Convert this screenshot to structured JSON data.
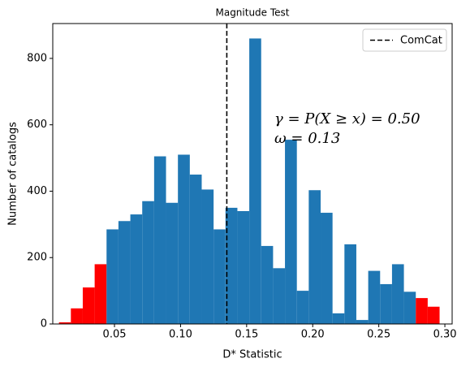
{
  "chart_data": {
    "type": "histogram",
    "title": "Magnitude Test",
    "x_label": "D* Statistic",
    "y_label": "Number of catalogs",
    "bins": [
      0.008,
      0.017,
      0.026,
      0.035,
      0.044,
      0.053,
      0.062,
      0.071,
      0.08,
      0.089,
      0.098,
      0.107,
      0.116,
      0.125,
      0.134,
      0.143,
      0.152,
      0.161,
      0.17,
      0.179,
      0.188,
      0.197,
      0.206,
      0.215,
      0.224,
      0.233,
      0.242,
      0.251,
      0.26,
      0.269,
      0.278,
      0.287,
      0.296
    ],
    "values": [
      5,
      47,
      110,
      180,
      285,
      310,
      330,
      370,
      505,
      365,
      510,
      450,
      405,
      285,
      350,
      340,
      860,
      235,
      168,
      555,
      100,
      403,
      335,
      32,
      240,
      12,
      160,
      120,
      180,
      97,
      78,
      52
    ],
    "colors": [
      "#ff0000",
      "#ff0000",
      "#ff0000",
      "#ff0000",
      "#1f77b4",
      "#1f77b4",
      "#1f77b4",
      "#1f77b4",
      "#1f77b4",
      "#1f77b4",
      "#1f77b4",
      "#1f77b4",
      "#1f77b4",
      "#1f77b4",
      "#1f77b4",
      "#1f77b4",
      "#1f77b4",
      "#1f77b4",
      "#1f77b4",
      "#1f77b4",
      "#1f77b4",
      "#1f77b4",
      "#1f77b4",
      "#1f77b4",
      "#1f77b4",
      "#1f77b4",
      "#1f77b4",
      "#1f77b4",
      "#1f77b4",
      "#1f77b4",
      "#ff0000",
      "#ff0000"
    ],
    "reference_line": {
      "name": "ComCat",
      "x": 0.135,
      "color": "#000000",
      "style": "dashed"
    },
    "annotations": [
      "γ = P(X ≥ x) = 0.50",
      "ω = 0.13"
    ],
    "xlim": [
      0.0033,
      0.3055
    ],
    "ylim": [
      0,
      905
    ],
    "xticks": [
      0.05,
      {
        "value": 0.1,
        "label": "0.10"
      },
      0.15,
      {
        "value": 0.2,
        "label": "0.20"
      },
      0.25,
      {
        "value": 0.3,
        "label": "0.30"
      }
    ],
    "yticks": [
      0,
      200,
      400,
      600,
      800
    ],
    "legend": "upper right"
  }
}
